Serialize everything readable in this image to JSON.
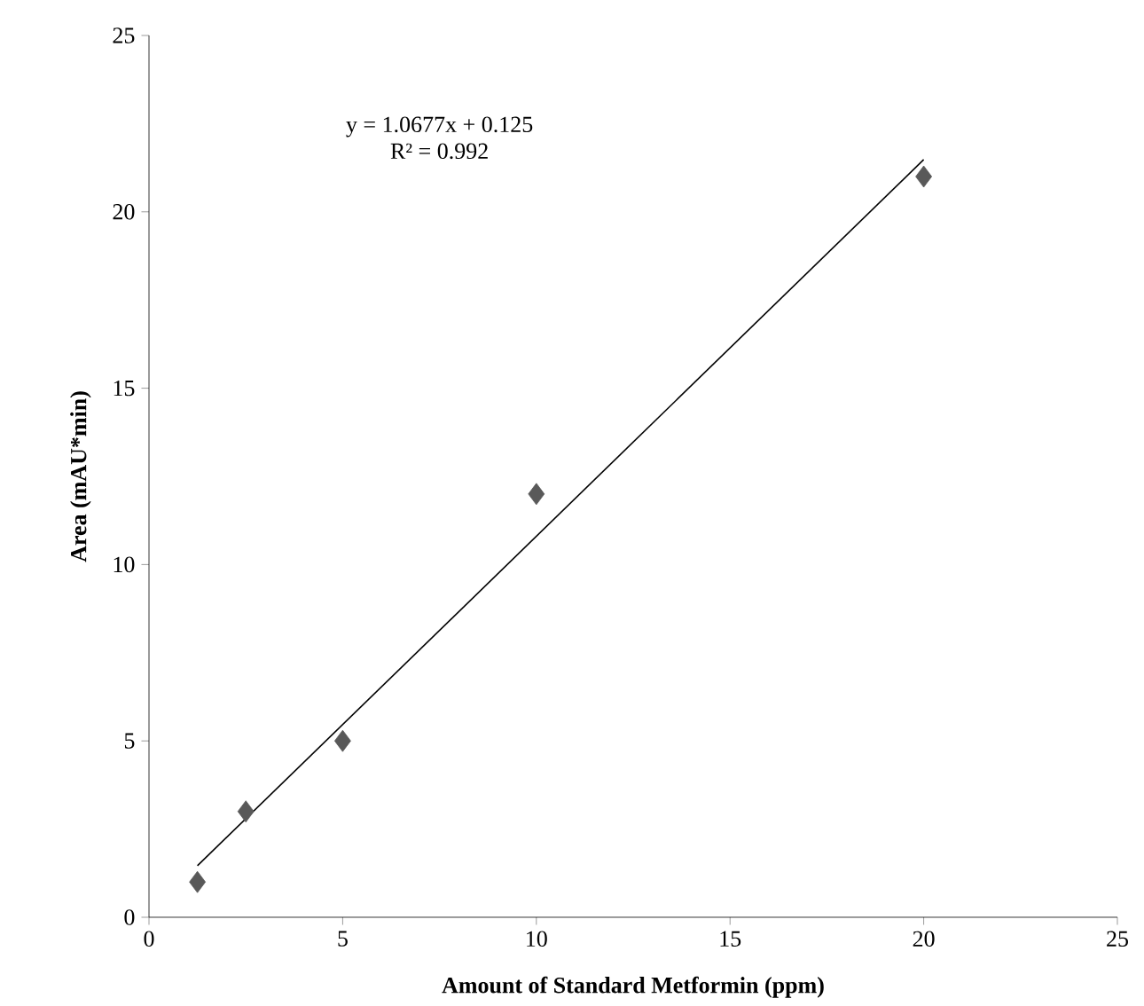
{
  "chart_data": {
    "type": "scatter",
    "xlabel": "Amount of Standard Metformin (ppm)",
    "ylabel": "Area (mAU*min)",
    "xlim": [
      0,
      25
    ],
    "xticks": [
      0,
      5,
      10,
      15,
      20,
      25
    ],
    "ylim": [
      0,
      25
    ],
    "yticks": [
      0,
      5,
      10,
      15,
      20,
      25
    ],
    "marker": "diamond",
    "grid": false,
    "annotations": [
      "y = 1.0677x + 0.125",
      "R² = 0.992"
    ],
    "series": [
      {
        "color": "#595959",
        "x": [
          1.25,
          2.5,
          5,
          10,
          20
        ],
        "values": [
          1,
          3,
          5,
          12,
          21
        ]
      },
      {
        "type": "line",
        "color": "#000000",
        "marker": "none",
        "x": [
          1.25,
          20
        ],
        "values": [
          1.46,
          21.48
        ]
      }
    ]
  }
}
